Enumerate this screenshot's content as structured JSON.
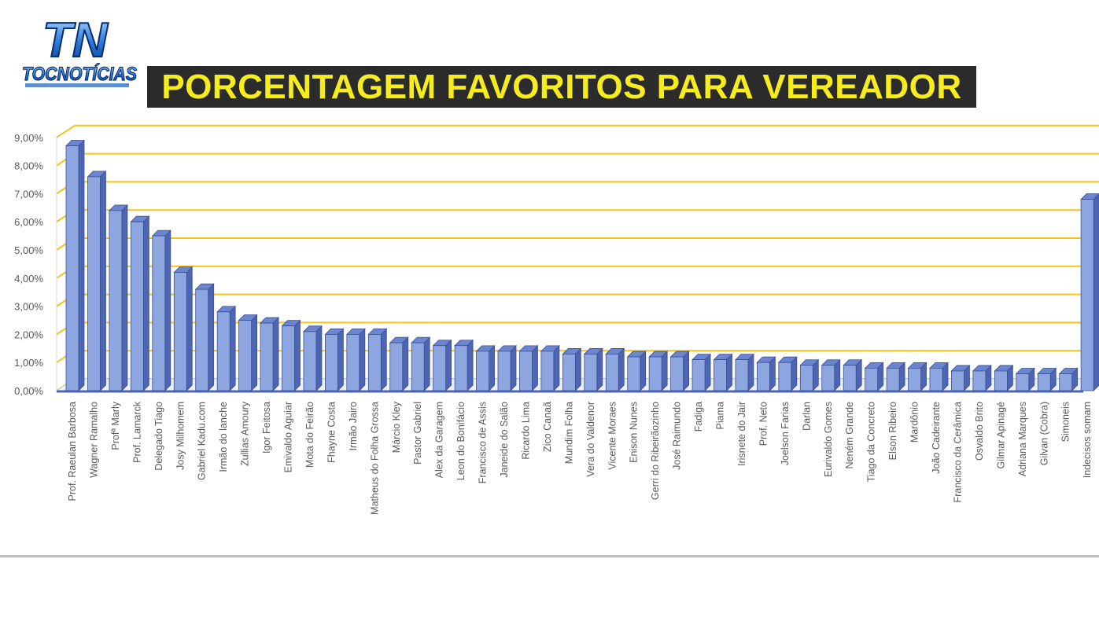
{
  "header": {
    "title": "PORCENTAGEM FAVORITOS PARA VEREADOR",
    "logo_text": "TOCNOTÍCIAS",
    "logo_mark": "TN"
  },
  "colors": {
    "title_bg": "#2b2b2b",
    "title_fg": "#f7ec1c",
    "grid": "#f2c31a",
    "bar_front": "#8ea6df",
    "bar_side": "#4d66b3",
    "bar_top": "#6b86cf"
  },
  "chart_data": {
    "type": "bar",
    "title": "PORCENTAGEM FAVORITOS PARA VEREADOR",
    "xlabel": "",
    "ylabel": "",
    "ylim": [
      0,
      9
    ],
    "grid": true,
    "y_ticks": [
      "0,00%",
      "1,00%",
      "2,00%",
      "3,00%",
      "4,00%",
      "5,00%",
      "6,00%",
      "7,00%",
      "8,00%",
      "9,00%"
    ],
    "categories": [
      "Prof. Raeulan Barbosa",
      "Wagner Ramalho",
      "Profª Marly",
      "Prof. Lamarck",
      "Delegado Tiago",
      "Josy Milhomem",
      "Gabriel Kadu.com",
      "Irmão do lanche",
      "Zullias Amoury",
      "Igor Feitosa",
      "Emivaldo Aguiar",
      "Mota do Feirão",
      "Fhayne Costa",
      "Irmão Jairo",
      "Matheus do Folha Grossa",
      "Márcio Kley",
      "Pastor Gabriel",
      "Alex da Garagem",
      "Leon do Bonifácio",
      "Francisco de Assis",
      "Janeide do Salão",
      "Ricardo Lima",
      "Zico Canaã",
      "Mundim Folha",
      "Vera do Valdenor",
      "Vicente Moraes",
      "Enison Nunes",
      "Gerri do Ribeirãozinho",
      "José Raimundo",
      "Fadiga",
      "Piama",
      "Irisnete do Jair",
      "Prof. Neto",
      "Joelson Farias",
      "Darlan",
      "Eurivaldo Gomes",
      "Neném Grande",
      "Tiago da Concreto",
      "Elson Ribeiro",
      "Mardônio",
      "João Cadeirante",
      "Francisco da Cerâmica",
      "Osvaldo Brito",
      "Gilmar Apinagé",
      "Adriana Marques",
      "Gilvan (Cobra)",
      "Simoneis",
      "Indecisos somam"
    ],
    "values": [
      8.7,
      7.6,
      6.4,
      6.0,
      5.5,
      4.2,
      3.6,
      2.8,
      2.5,
      2.4,
      2.3,
      2.1,
      2.0,
      2.0,
      2.0,
      1.7,
      1.7,
      1.6,
      1.6,
      1.4,
      1.4,
      1.4,
      1.4,
      1.3,
      1.3,
      1.3,
      1.2,
      1.2,
      1.2,
      1.1,
      1.1,
      1.1,
      1.0,
      1.0,
      0.9,
      0.9,
      0.9,
      0.8,
      0.8,
      0.8,
      0.8,
      0.7,
      0.7,
      0.7,
      0.6,
      0.6,
      0.6,
      6.8
    ]
  }
}
